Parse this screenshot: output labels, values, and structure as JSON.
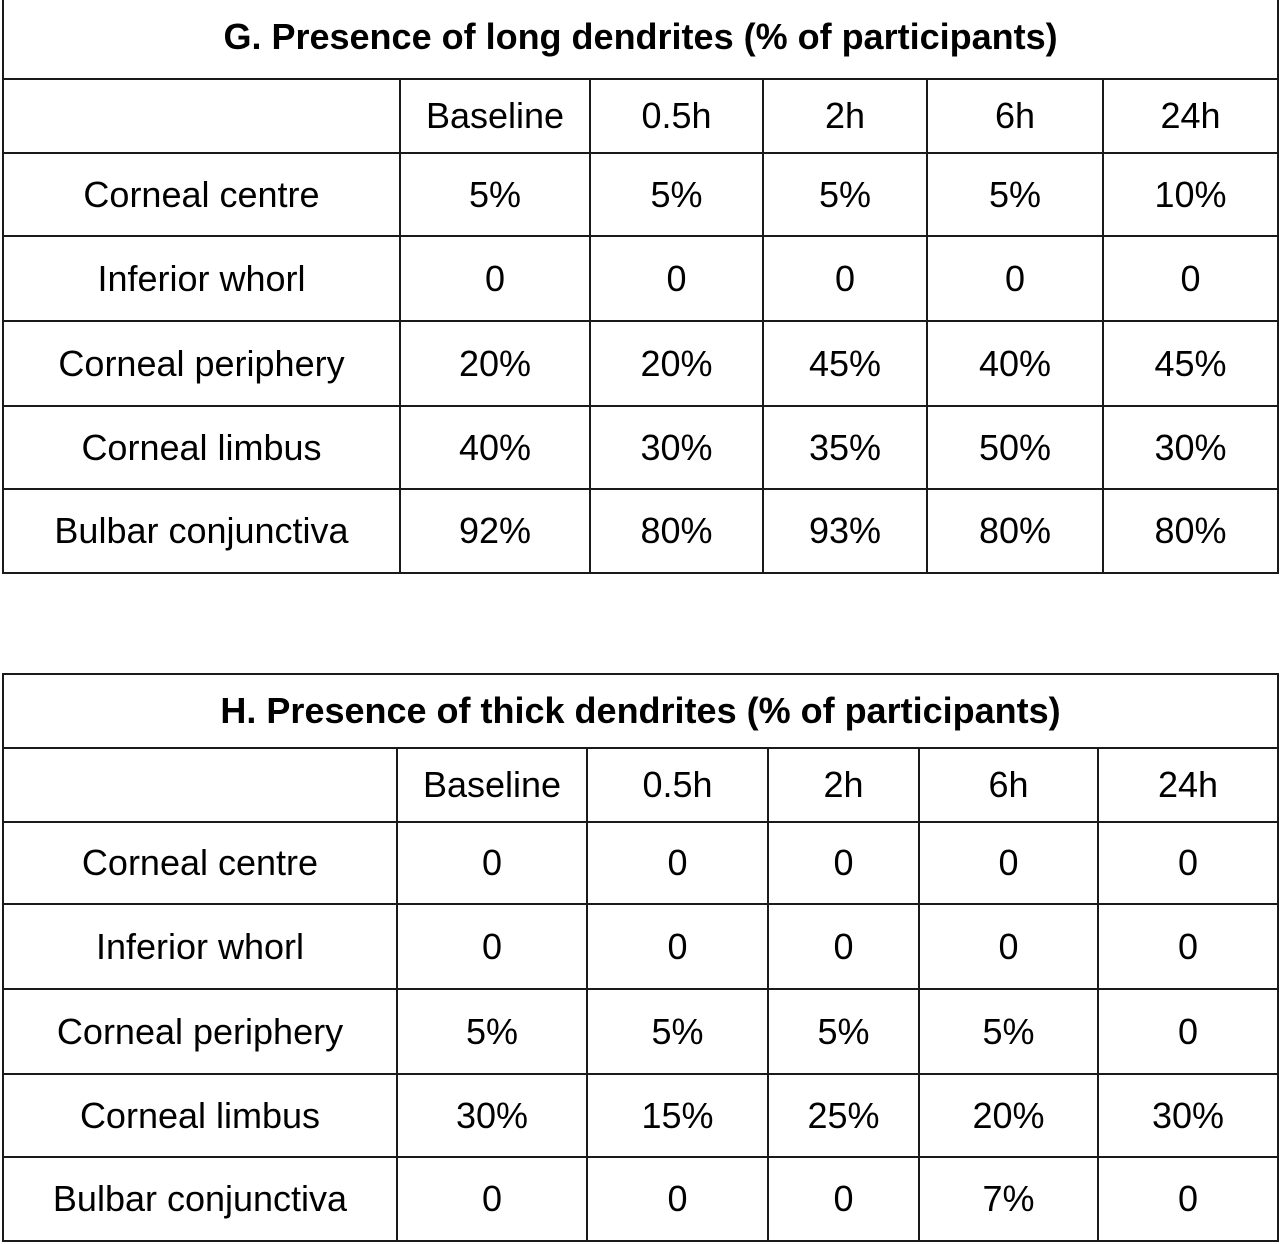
{
  "chart_data": [
    {
      "type": "table",
      "title": "G. Presence of long dendrites (% of participants)",
      "columns": [
        "",
        "Baseline",
        "0.5h",
        "2h",
        "6h",
        "24h"
      ],
      "rows": [
        {
          "label": "Corneal centre",
          "values": [
            "5%",
            "5%",
            "5%",
            "5%",
            "10%"
          ]
        },
        {
          "label": "Inferior whorl",
          "values": [
            "0",
            "0",
            "0",
            "0",
            "0"
          ]
        },
        {
          "label": "Corneal periphery",
          "values": [
            "20%",
            "20%",
            "45%",
            "40%",
            "45%"
          ]
        },
        {
          "label": "Corneal limbus",
          "values": [
            "40%",
            "30%",
            "35%",
            "50%",
            "30%"
          ]
        },
        {
          "label": "Bulbar conjunctiva",
          "values": [
            "92%",
            "80%",
            "93%",
            "80%",
            "80%"
          ]
        }
      ]
    },
    {
      "type": "table",
      "title": "H. Presence of thick dendrites (% of participants)",
      "columns": [
        "",
        "Baseline",
        "0.5h",
        "2h",
        "6h",
        "24h"
      ],
      "rows": [
        {
          "label": "Corneal centre",
          "values": [
            "0",
            "0",
            "0",
            "0",
            "0"
          ]
        },
        {
          "label": "Inferior whorl",
          "values": [
            "0",
            "0",
            "0",
            "0",
            "0"
          ]
        },
        {
          "label": "Corneal periphery",
          "values": [
            "5%",
            "5%",
            "5%",
            "5%",
            "0"
          ]
        },
        {
          "label": "Corneal limbus",
          "values": [
            "30%",
            "15%",
            "25%",
            "20%",
            "30%"
          ]
        },
        {
          "label": "Bulbar conjunctiva",
          "values": [
            "0",
            "0",
            "0",
            "7%",
            "0"
          ]
        }
      ]
    }
  ]
}
